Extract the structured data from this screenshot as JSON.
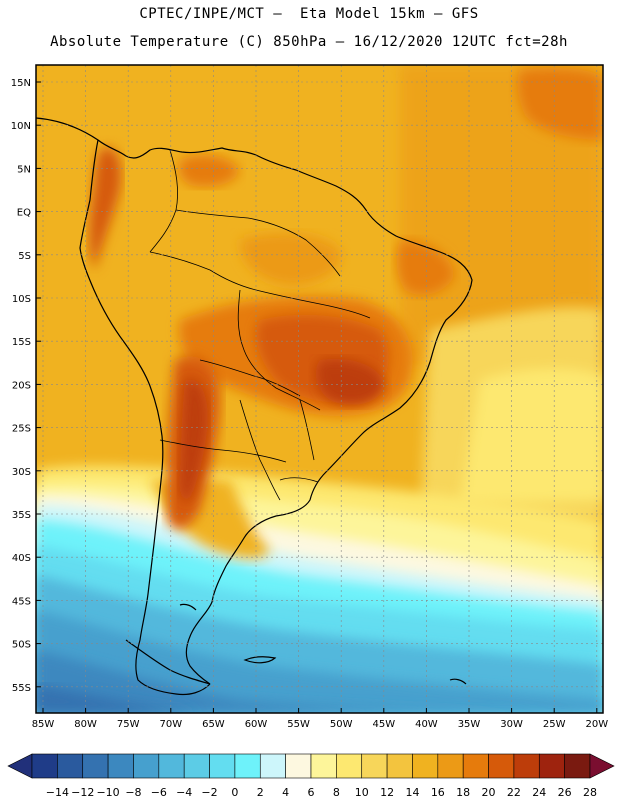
{
  "header": {
    "line1": "CPTEC/INPE/MCT –  Eta Model 15km – GFS",
    "line2": "Absolute Temperature (C) 850hPa – 16/12/2020 12UTC fct=28h"
  },
  "map": {
    "lat_labels": [
      "15N",
      "10N",
      "5N",
      "EQ",
      "5S",
      "10S",
      "15S",
      "20S",
      "25S",
      "30S",
      "35S",
      "40S",
      "45S",
      "50S",
      "55S"
    ],
    "lon_labels": [
      "85W",
      "80W",
      "75W",
      "70W",
      "65W",
      "60W",
      "55W",
      "50W",
      "45W",
      "40W",
      "35W",
      "30W",
      "25W",
      "20W"
    ]
  },
  "colorbar": {
    "labels": [
      "-14",
      "-12",
      "-10",
      "-8",
      "-6",
      "-4",
      "-2",
      "0",
      "2",
      "4",
      "6",
      "8",
      "10",
      "12",
      "14",
      "16",
      "18",
      "20",
      "22",
      "24",
      "26",
      "28"
    ],
    "colors": [
      "#1f3c88",
      "#2a5a9e",
      "#3472b0",
      "#3c88bf",
      "#46a0ce",
      "#52b8dc",
      "#5ccce6",
      "#63ddf0",
      "#6ef2fa",
      "#cdf6fb",
      "#fdf8e0",
      "#fdf59a",
      "#fde870",
      "#f7d65a",
      "#f3c43e",
      "#f0b220",
      "#ec9a16",
      "#e67b0c",
      "#d65a0a",
      "#bd3d0a",
      "#9e230e",
      "#7a1a10"
    ],
    "left_arrow_color": "#21307a",
    "right_arrow_color": "#7a0e30"
  }
}
